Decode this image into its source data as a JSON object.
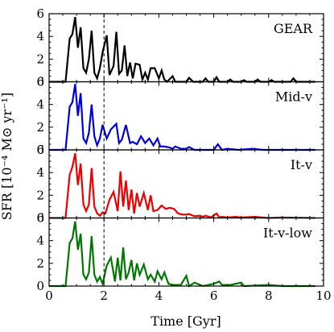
{
  "chart_data": {
    "type": "line",
    "xlabel": "Time [Gyr]",
    "ylabel": "SFR [10⁻⁴ M⊙ yr⁻¹]",
    "xlim": [
      0,
      10
    ],
    "ylim": [
      0,
      6
    ],
    "x_ticks": [
      0,
      2,
      4,
      6,
      8,
      10
    ],
    "y_ticks": [
      0,
      2,
      4,
      6
    ],
    "x_tick_labels": [
      "0",
      "2",
      "4",
      "6",
      "8",
      "10"
    ],
    "y_tick_labels": [
      "0",
      "2",
      "4",
      "6"
    ],
    "vline_x": 2.0,
    "grid": false,
    "panels": [
      {
        "label": "GEAR",
        "color": "#000000",
        "x": [
          0,
          0.6,
          0.75,
          0.85,
          0.95,
          1.05,
          1.15,
          1.25,
          1.35,
          1.45,
          1.55,
          1.65,
          1.75,
          1.85,
          1.95,
          2.1,
          2.2,
          2.35,
          2.45,
          2.55,
          2.65,
          2.75,
          2.85,
          2.95,
          3.05,
          3.15,
          3.3,
          3.4,
          3.5,
          3.6,
          3.7,
          3.85,
          4.0,
          4.1,
          4.2,
          4.3,
          4.5,
          4.6,
          4.75,
          5.0,
          5.1,
          5.25,
          5.6,
          5.7,
          5.8,
          6.0,
          6.1,
          6.2,
          6.5,
          6.6,
          6.7,
          7.0,
          7.1,
          7.2,
          7.5,
          7.6,
          7.7,
          8.0,
          8.1,
          8.2,
          8.8,
          8.9,
          9.0,
          9.7
        ],
        "y": [
          0,
          0,
          3.8,
          4.2,
          5.7,
          3.0,
          4.8,
          1.2,
          0.8,
          2.0,
          4.5,
          0.8,
          0.3,
          1.2,
          2.6,
          4.1,
          0.6,
          1.4,
          4.4,
          0.7,
          1.0,
          3.2,
          0.5,
          1.7,
          0.3,
          1.6,
          1.5,
          0.2,
          0.8,
          0.2,
          1.2,
          1.2,
          0.3,
          1.0,
          0.2,
          0,
          0.5,
          0,
          0,
          0,
          0.35,
          0,
          0,
          0.3,
          0,
          0,
          0.4,
          0,
          0,
          0.2,
          0,
          0,
          0.15,
          0,
          0,
          0.2,
          0,
          0,
          0.15,
          0,
          0,
          0.3,
          0,
          0
        ]
      },
      {
        "label": "Mid-v",
        "color": "#0000dd",
        "x": [
          0,
          0.6,
          0.75,
          0.85,
          0.95,
          1.05,
          1.15,
          1.25,
          1.35,
          1.45,
          1.55,
          1.65,
          1.75,
          1.85,
          1.95,
          2.1,
          2.25,
          2.45,
          2.55,
          2.65,
          2.8,
          2.95,
          3.05,
          3.2,
          3.35,
          3.5,
          3.65,
          3.8,
          3.95,
          4.05,
          4.2,
          4.4,
          4.5,
          4.6,
          4.8,
          5.0,
          5.1,
          5.3,
          5.5,
          6.0,
          6.15,
          6.3,
          6.5,
          6.9,
          7.4,
          7.8,
          9.7
        ],
        "y": [
          0,
          0,
          3.8,
          4.2,
          5.8,
          3.0,
          5.0,
          1.0,
          0.6,
          1.5,
          4.0,
          1.2,
          0.4,
          1.0,
          2.2,
          1.0,
          1.8,
          2.3,
          0.6,
          0.9,
          2.2,
          0.6,
          0.7,
          0.5,
          1.2,
          0.6,
          1.0,
          0.4,
          1.0,
          0.3,
          0.3,
          0.2,
          0.1,
          0.3,
          0.1,
          0.1,
          0.25,
          0,
          0,
          0,
          0.5,
          0,
          0.1,
          0,
          0.1,
          0,
          0
        ]
      },
      {
        "label": "It-v",
        "color": "#ee0000",
        "x": [
          0,
          0.6,
          0.75,
          0.85,
          0.95,
          1.05,
          1.15,
          1.25,
          1.35,
          1.45,
          1.55,
          1.65,
          1.75,
          1.85,
          1.95,
          2.05,
          2.2,
          2.35,
          2.5,
          2.6,
          2.7,
          2.8,
          2.9,
          3.0,
          3.1,
          3.2,
          3.3,
          3.45,
          3.6,
          3.7,
          3.8,
          3.95,
          4.1,
          4.25,
          4.4,
          4.55,
          4.7,
          4.85,
          5.0,
          5.1,
          5.3,
          5.5,
          5.6,
          5.7,
          5.9,
          6.1,
          6.2,
          6.3,
          6.5,
          6.8,
          7.0,
          7.5,
          8.0,
          8.5,
          9.7
        ],
        "y": [
          0,
          0,
          3.8,
          4.5,
          5.7,
          2.9,
          4.8,
          1.2,
          0.6,
          1.2,
          4.4,
          1.0,
          0.4,
          0.2,
          0.5,
          0.4,
          1.6,
          2.3,
          0.6,
          4.1,
          1.0,
          3.3,
          0.7,
          2.5,
          0.4,
          2.2,
          1.0,
          2.2,
          0.7,
          2.0,
          0.6,
          0.7,
          1.1,
          0.8,
          0.9,
          0.8,
          0.4,
          0.3,
          0.3,
          0.35,
          0.15,
          0.2,
          0.1,
          0.2,
          0.05,
          0.4,
          0.05,
          0.1,
          0.05,
          0.1,
          0.05,
          0.1,
          0,
          0.05,
          0
        ]
      },
      {
        "label": "It-v-low",
        "color": "#007700",
        "x": [
          0,
          0.6,
          0.75,
          0.85,
          0.95,
          1.05,
          1.15,
          1.25,
          1.35,
          1.45,
          1.55,
          1.65,
          1.75,
          1.85,
          1.95,
          2.1,
          2.25,
          2.4,
          2.5,
          2.6,
          2.7,
          2.8,
          2.9,
          3.0,
          3.1,
          3.2,
          3.3,
          3.45,
          3.6,
          3.7,
          3.85,
          3.95,
          4.1,
          4.2,
          4.35,
          4.5,
          4.8,
          5.0,
          5.1,
          5.3,
          5.6,
          6.0,
          6.2,
          6.3,
          6.6,
          7.0,
          7.1,
          7.5,
          8.0,
          8.5,
          9.7
        ],
        "y": [
          0,
          0,
          3.8,
          4.2,
          5.7,
          3.2,
          4.6,
          1.0,
          0.6,
          1.2,
          4.4,
          1.0,
          0.4,
          0.8,
          0.2,
          1.8,
          2.5,
          0.4,
          2.5,
          0.5,
          3.4,
          0.6,
          1.2,
          2.3,
          0.5,
          2.0,
          1.0,
          1.9,
          0.6,
          1.0,
          0.4,
          1.3,
          0.6,
          1.2,
          0.2,
          0.1,
          0.1,
          0.9,
          0,
          0.3,
          0,
          0.2,
          0.4,
          0.1,
          0.1,
          0.3,
          0,
          0.05,
          0.1,
          0,
          0
        ]
      }
    ]
  }
}
